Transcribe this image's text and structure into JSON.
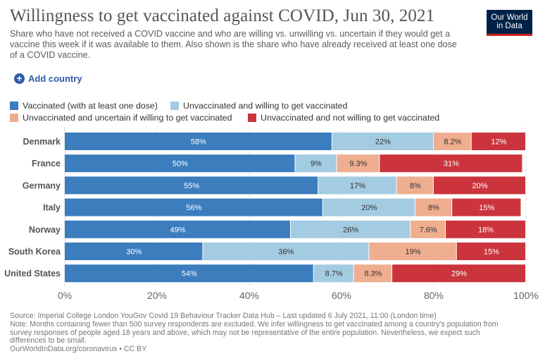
{
  "header": {
    "title": "Willingness to get vaccinated against COVID, Jun 30, 2021",
    "subtitle": "Share who have not received a COVID vaccine and who are willing vs. unwilling vs. uncertain if they would get a vaccine this week if it was available to them. Also shown is the share who have already received at least one dose of a COVID vaccine.",
    "logo_line1": "Our World",
    "logo_line2": "in Data"
  },
  "controls": {
    "add_country_label": "Add country",
    "add_icon": "plus-circle-icon"
  },
  "legend": [
    {
      "label": "Vaccinated (with at least one dose)",
      "color": "#3b7dbd"
    },
    {
      "label": "Unvaccinated and willing to get vaccinated",
      "color": "#a3cbe2"
    },
    {
      "label": "Unvaccinated and uncertain if willing to get vaccinated",
      "color": "#efae8f"
    },
    {
      "label": "Unvaccinated and not willing to get vaccinated",
      "color": "#cb343c"
    }
  ],
  "chart_data": {
    "type": "bar",
    "orientation": "horizontal",
    "stacked": true,
    "title": "Willingness to get vaccinated against COVID, Jun 30, 2021",
    "categories": [
      "Denmark",
      "France",
      "Germany",
      "Italy",
      "Norway",
      "South Korea",
      "United States"
    ],
    "series": [
      {
        "name": "Vaccinated (with at least one dose)",
        "values": [
          58,
          50,
          55,
          56,
          49,
          30,
          54
        ],
        "labels": [
          "58%",
          "50%",
          "55%",
          "56%",
          "49%",
          "30%",
          "54%"
        ]
      },
      {
        "name": "Unvaccinated and willing to get vaccinated",
        "values": [
          22,
          9,
          17,
          20,
          26,
          36,
          8.7
        ],
        "labels": [
          "22%",
          "9%",
          "17%",
          "20%",
          "26%",
          "36%",
          "8.7%"
        ]
      },
      {
        "name": "Unvaccinated and uncertain if willing to get vaccinated",
        "values": [
          8.2,
          9.3,
          8,
          8,
          7.6,
          19,
          8.3
        ],
        "labels": [
          "8.2%",
          "9.3%",
          "8%",
          "8%",
          "7.6%",
          "19%",
          "8.3%"
        ]
      },
      {
        "name": "Unvaccinated and not willing to get vaccinated",
        "values": [
          12,
          31,
          20,
          15,
          18,
          15,
          29
        ],
        "labels": [
          "12%",
          "31%",
          "20%",
          "15%",
          "18%",
          "15%",
          "29%"
        ]
      }
    ],
    "xlim": [
      0,
      100
    ],
    "x_ticks": [
      0,
      20,
      40,
      60,
      80,
      100
    ],
    "x_tick_labels": [
      "0%",
      "20%",
      "40%",
      "60%",
      "80%",
      "100%"
    ],
    "grid": true,
    "xlabel": "",
    "ylabel": ""
  },
  "footer": {
    "source": "Source: Imperial College London YouGov Covid 19 Behaviour Tracker Data Hub – Last updated 6 July 2021, 11:00 (London time)",
    "note": "Note: Months containing fewer than 500 survey respondents are excluded. We infer willingness to get vaccinated among a country's population from survey responses of people aged 18 years and above, which may not be representative of the entire population. Nevertheless, we expect such differences to be small.",
    "license": "OurWorldInData.org/coronavirus • CC BY"
  }
}
